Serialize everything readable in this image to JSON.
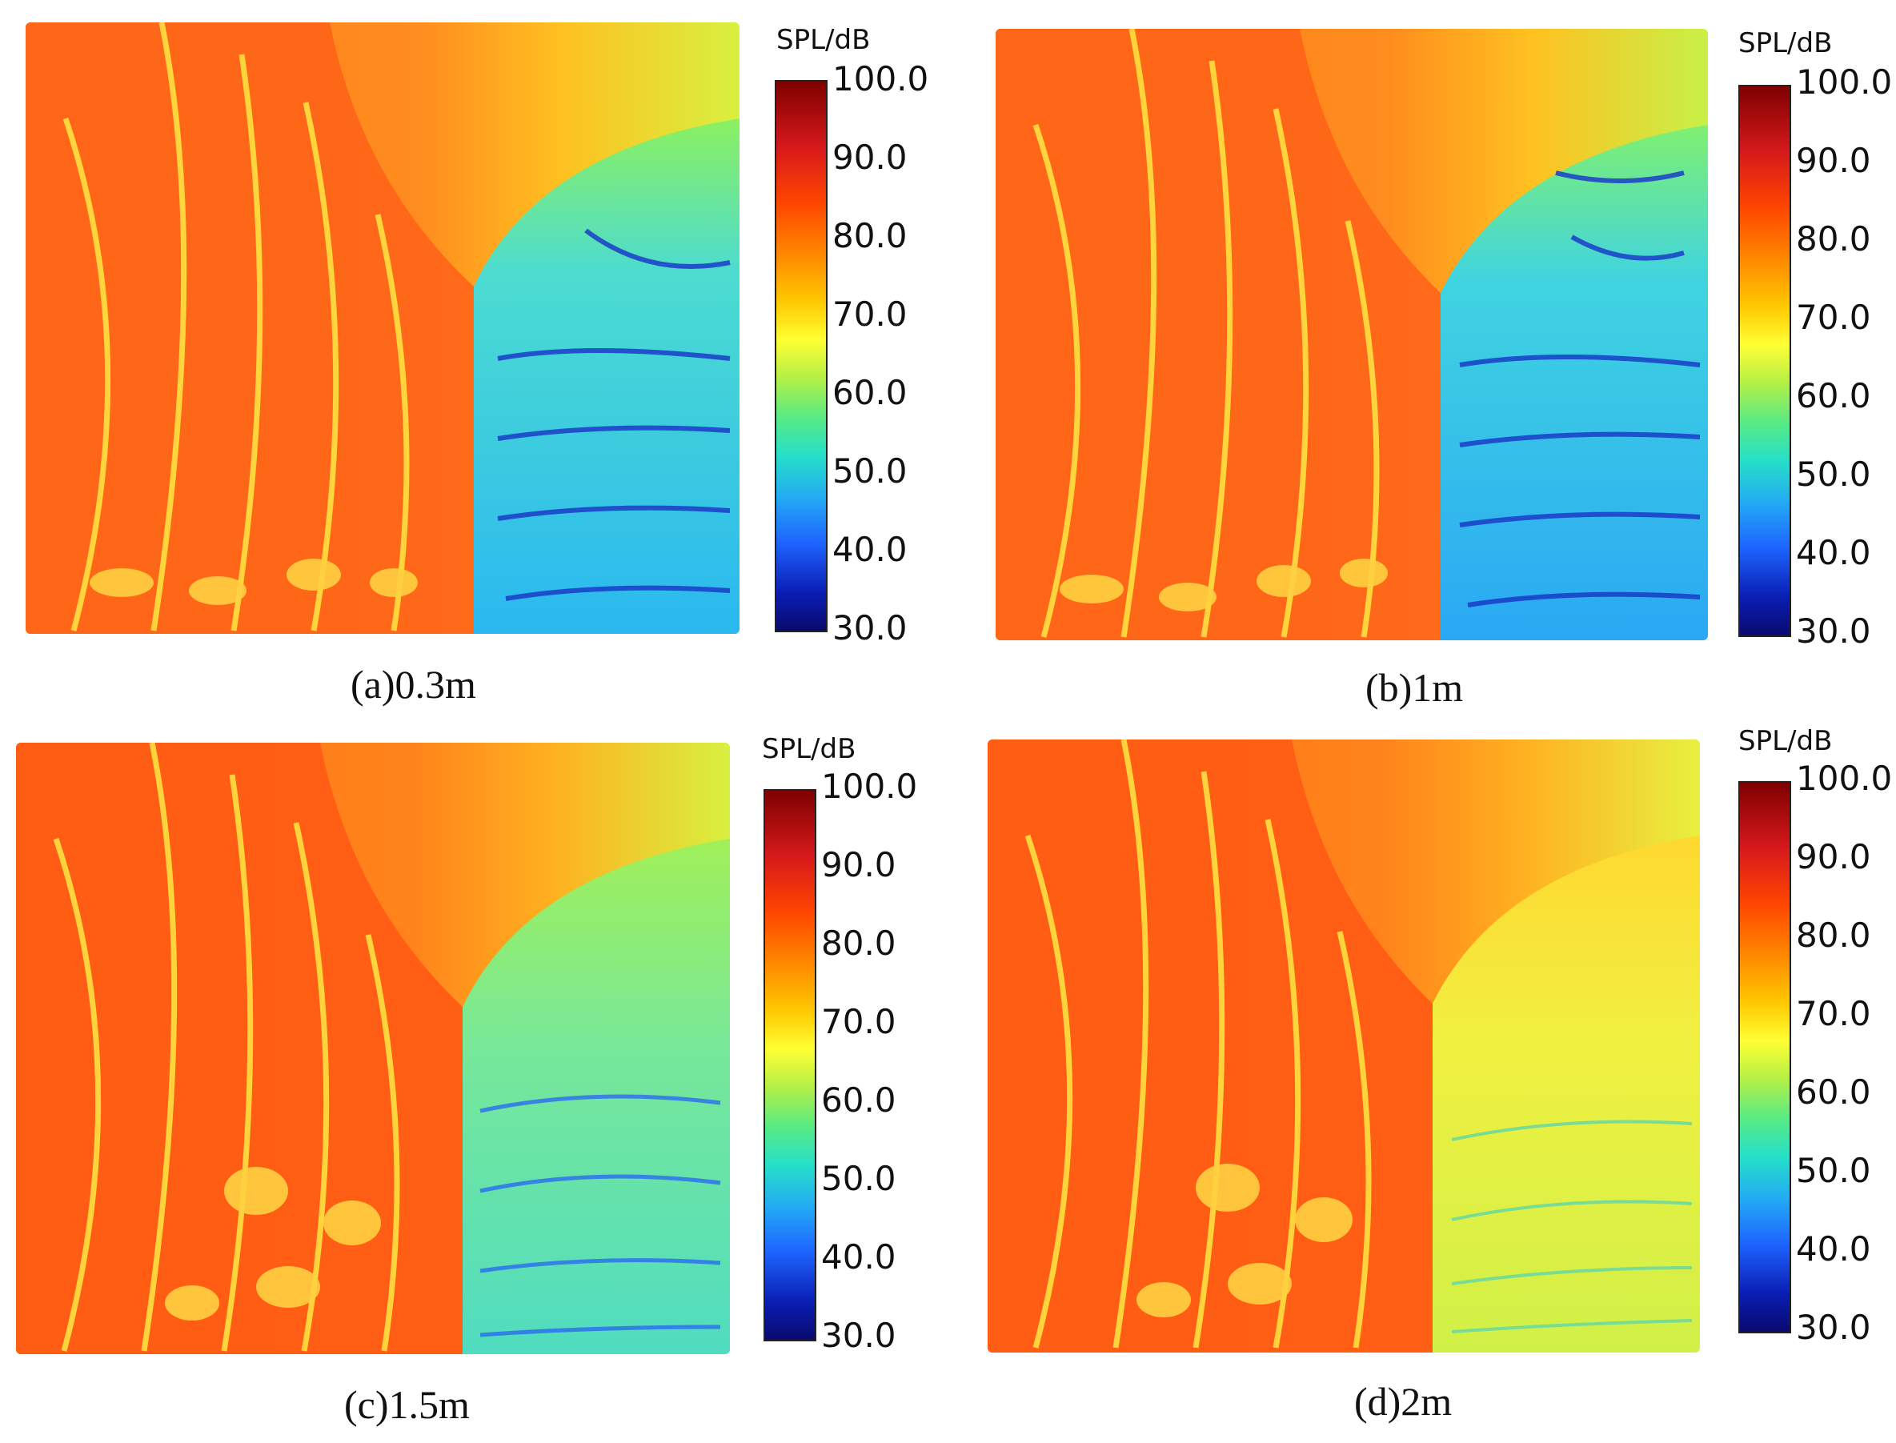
{
  "colorbar": {
    "title": "SPL/dB",
    "ticks": [
      "100.0",
      "90.0",
      "80.0",
      "70.0",
      "60.0",
      "50.0",
      "40.0",
      "30.0"
    ],
    "min": 30.0,
    "max": 100.0,
    "colormap": [
      "#0a0a6e",
      "#0a1eb4",
      "#1e64ff",
      "#23a9f5",
      "#26e0c8",
      "#5aeb82",
      "#b4f046",
      "#ffff33",
      "#ffc800",
      "#ff8c00",
      "#ff4500",
      "#d7191c",
      "#7f0000"
    ]
  },
  "panels": [
    {
      "caption": "(a)0.3m"
    },
    {
      "caption": "(b)1m"
    },
    {
      "caption": "(c)1.5m"
    },
    {
      "caption": "(d)2m"
    }
  ],
  "palette": {
    "hot": "#ff5a14",
    "warm": "#ff8c1e",
    "yellow": "#ffe628",
    "green": "#96f050",
    "cyan": "#30e6c0",
    "blue": "#1e78ff",
    "darkblue": "#0a1eaa"
  }
}
